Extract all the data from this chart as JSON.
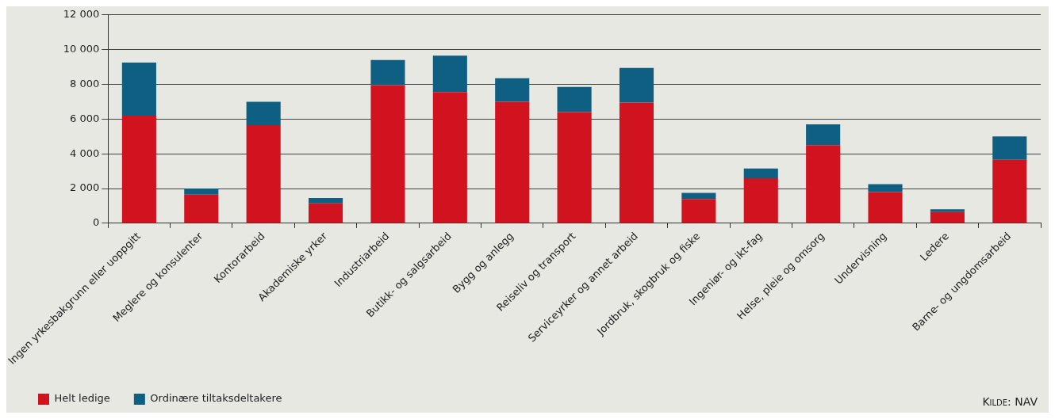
{
  "chart_data": {
    "type": "bar",
    "stacked": true,
    "categories": [
      "Ingen yrkesbakgrunn eller uoppgitt",
      "Meglere og konsulenter",
      "Kontorarbeid",
      "Akademiske yrker",
      "Industriarbeid",
      "Butikk- og salgsarbeid",
      "Bygg og anlegg",
      "Reiseliv og transport",
      "Serviceyrker og annet arbeid",
      "Jordbruk, skogbruk og fiske",
      "Ingeniør- og ikt-fag",
      "Helse, pleie og omsorg",
      "Undervisning",
      "Ledere",
      "Barne- og ungdomsarbeid"
    ],
    "series": [
      {
        "name": "Helt ledige",
        "color": "#d0131f",
        "values": [
          6200,
          1650,
          5650,
          1150,
          7950,
          7550,
          7000,
          6400,
          6950,
          1400,
          2600,
          4500,
          1800,
          650,
          3650
        ]
      },
      {
        "name": "Ordinære tiltaksdeltakere",
        "color": "#0f5f82",
        "values": [
          3050,
          350,
          1350,
          300,
          1450,
          2100,
          1350,
          1450,
          2000,
          350,
          550,
          1200,
          450,
          150,
          1350
        ]
      }
    ],
    "ylim": [
      0,
      12000
    ],
    "yticks": [
      0,
      {
        "value": 2000,
        "label": "2 000"
      },
      {
        "value": 4000,
        "label": "4 000"
      },
      {
        "value": 6000,
        "label": "6 000"
      },
      {
        "value": 8000,
        "label": "8 000"
      },
      {
        "value": 10000,
        "label": "10 000"
      },
      {
        "value": 12000,
        "label": "12 000"
      }
    ],
    "grid": "y",
    "legend": "bottom left",
    "annotations": [
      "Kilde: NAV"
    ]
  }
}
